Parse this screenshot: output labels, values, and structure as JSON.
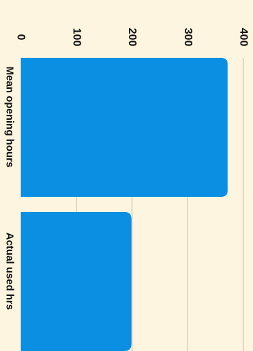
{
  "chart_data": {
    "type": "bar",
    "orientation": "horizontal",
    "rotated": "90deg-clockwise",
    "categories": [
      "Mean opening hours",
      "Actual used hrs"
    ],
    "values": [
      372,
      199
    ],
    "title": "",
    "xlabel": "",
    "ylabel": "",
    "xlim": [
      0,
      400
    ],
    "x_ticks": [
      0,
      100,
      200,
      300,
      400
    ],
    "grid": true,
    "legend": "none",
    "colors": {
      "bar": "#0a8fe3",
      "background": "#fdf5df",
      "grid": "#d3cfc3",
      "text": "#111111"
    }
  }
}
